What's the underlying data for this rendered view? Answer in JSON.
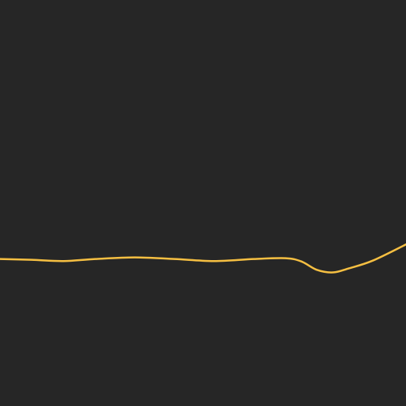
{
  "chart_data": {
    "type": "line",
    "x": [
      0,
      40,
      80,
      120,
      170,
      220,
      270,
      320,
      360,
      380,
      400,
      420,
      440,
      470,
      512
    ],
    "series": [
      {
        "values": [
          0.362,
          0.36,
          0.357,
          0.362,
          0.366,
          0.362,
          0.357,
          0.362,
          0.364,
          0.356,
          0.335,
          0.329,
          0.339,
          0.358,
          0.398
        ]
      }
    ],
    "xlim": [
      0,
      512
    ],
    "ylim": [
      0,
      1
    ],
    "grid": false,
    "legend": "none",
    "colors": {
      "background": "#262626",
      "line": "#F5BF42"
    }
  }
}
